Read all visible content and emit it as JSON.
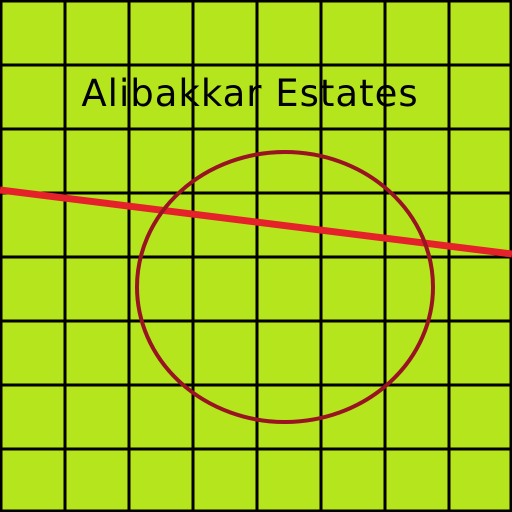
{
  "map": {
    "title": "Alibakkar Estates",
    "colors": {
      "background": "#b5e61d",
      "grid": "#000000",
      "road": "#e5222a",
      "boundary": "#991422"
    },
    "grid": {
      "rows": 8,
      "columns": 8
    },
    "features": [
      {
        "kind": "road",
        "label": ""
      },
      {
        "kind": "circular-boundary",
        "label": ""
      }
    ]
  }
}
